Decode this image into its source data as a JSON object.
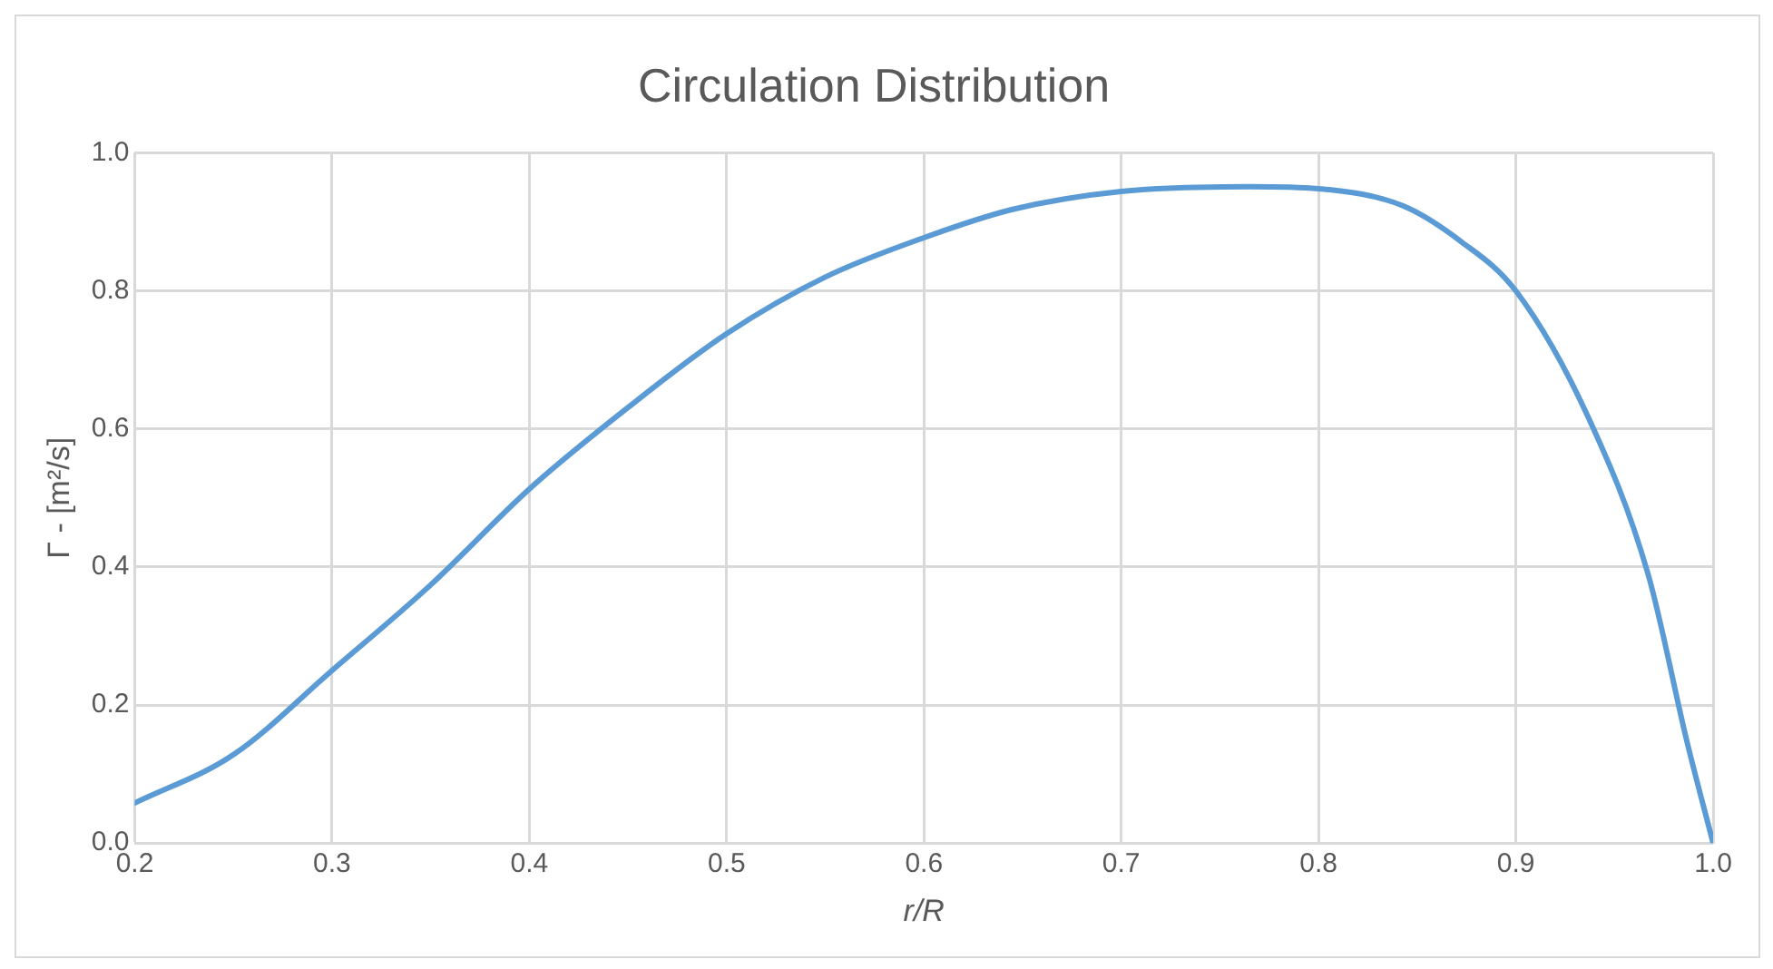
{
  "chart_data": {
    "type": "line",
    "title": "Circulation Distribution",
    "xlabel": "r/R",
    "ylabel": "Γ - [m²/s]",
    "x": [
      0.2,
      0.25,
      0.3,
      0.35,
      0.4,
      0.45,
      0.5,
      0.55,
      0.6,
      0.645,
      0.7,
      0.765,
      0.8,
      0.843,
      0.872,
      0.9,
      0.937,
      0.967,
      0.987,
      1.0
    ],
    "series": [
      {
        "color": "#5b9bd5",
        "values": [
          0.058,
          0.128,
          0.25,
          0.374,
          0.513,
          0.631,
          0.738,
          0.82,
          0.877,
          0.918,
          0.944,
          0.951,
          0.948,
          0.923,
          0.872,
          0.8,
          0.615,
          0.39,
          0.144,
          0.0
        ]
      }
    ],
    "xlim": [
      0.2,
      1.0
    ],
    "xticks": [
      {
        "value": 0.2,
        "label": "0.2"
      },
      {
        "value": 0.3,
        "label": "0.3"
      },
      {
        "value": 0.4,
        "label": "0.4"
      },
      {
        "value": 0.5,
        "label": "0.5"
      },
      {
        "value": 0.6,
        "label": "0.6"
      },
      {
        "value": 0.7,
        "label": "0.7"
      },
      {
        "value": 0.8,
        "label": "0.8"
      },
      {
        "value": 0.9,
        "label": "0.9"
      },
      {
        "value": 1.0,
        "label": "1.0"
      }
    ],
    "ylim": [
      0,
      1.0
    ],
    "yticks": [
      {
        "value": 0,
        "label": "0.0"
      },
      {
        "value": 0.2,
        "label": "0.2"
      },
      {
        "value": 0.4,
        "label": "0.4"
      },
      {
        "value": 0.6,
        "label": "0.6"
      },
      {
        "value": 0.8,
        "label": "0.8"
      },
      {
        "value": 1.0,
        "label": "1.0"
      }
    ],
    "grid": true,
    "legend": false,
    "marker": "none",
    "line_style": "solid"
  }
}
